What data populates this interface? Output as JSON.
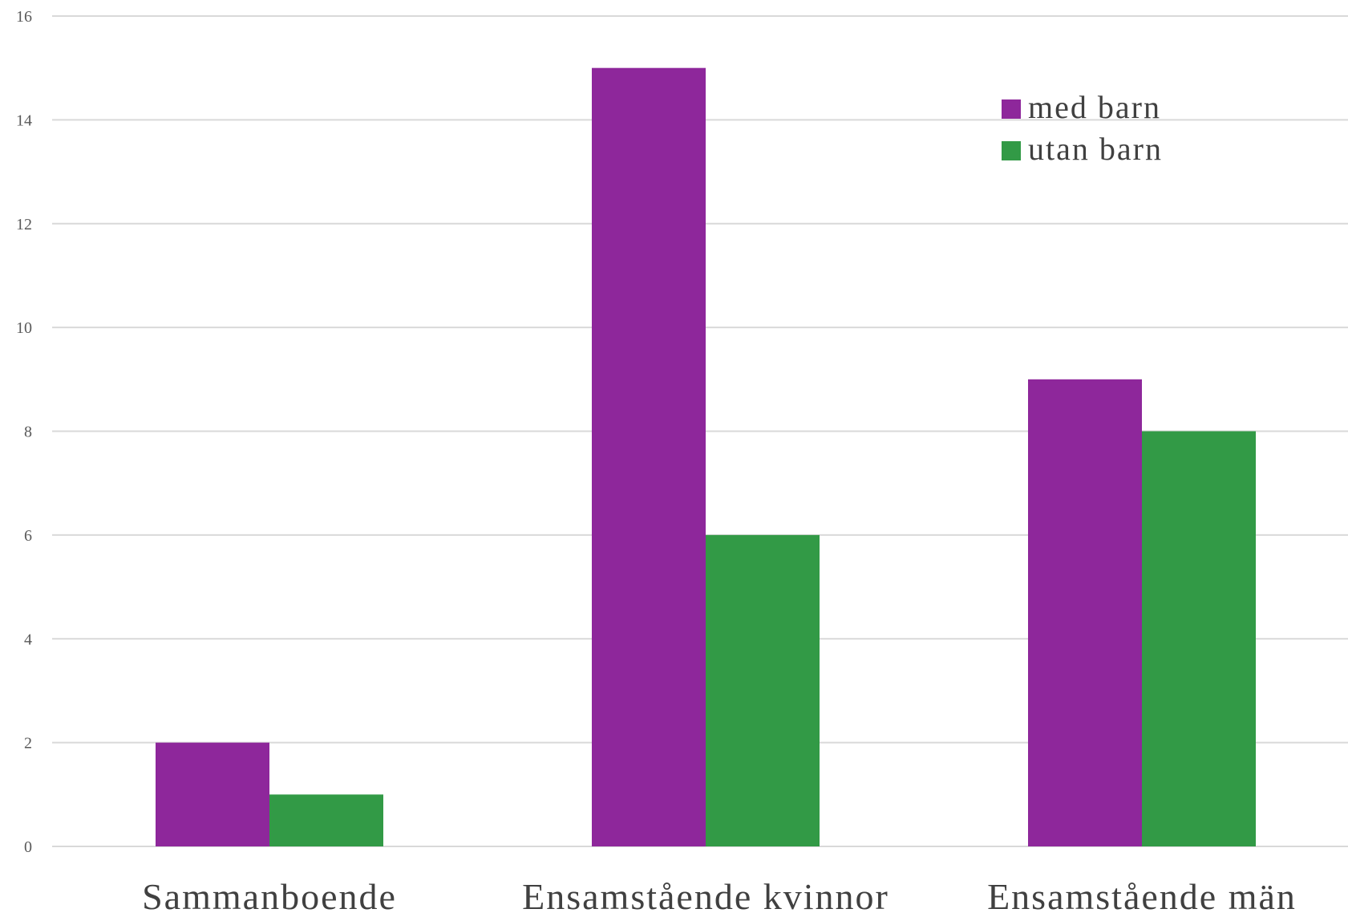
{
  "chart_data": {
    "type": "bar",
    "categories": [
      "Sammanboende",
      "Ensamstående kvinnor",
      "Ensamstående män"
    ],
    "series": [
      {
        "name": "med barn",
        "values": [
          2,
          15,
          9
        ],
        "color": "#8e279b"
      },
      {
        "name": "utan barn",
        "values": [
          1,
          6,
          8
        ],
        "color": "#329a46"
      }
    ],
    "yticks": [
      0,
      2,
      4,
      6,
      8,
      10,
      12,
      14,
      16
    ],
    "ylim": [
      0,
      16
    ],
    "grid": true,
    "legend_position": "top-right",
    "title": "",
    "xlabel": "",
    "ylabel": ""
  }
}
